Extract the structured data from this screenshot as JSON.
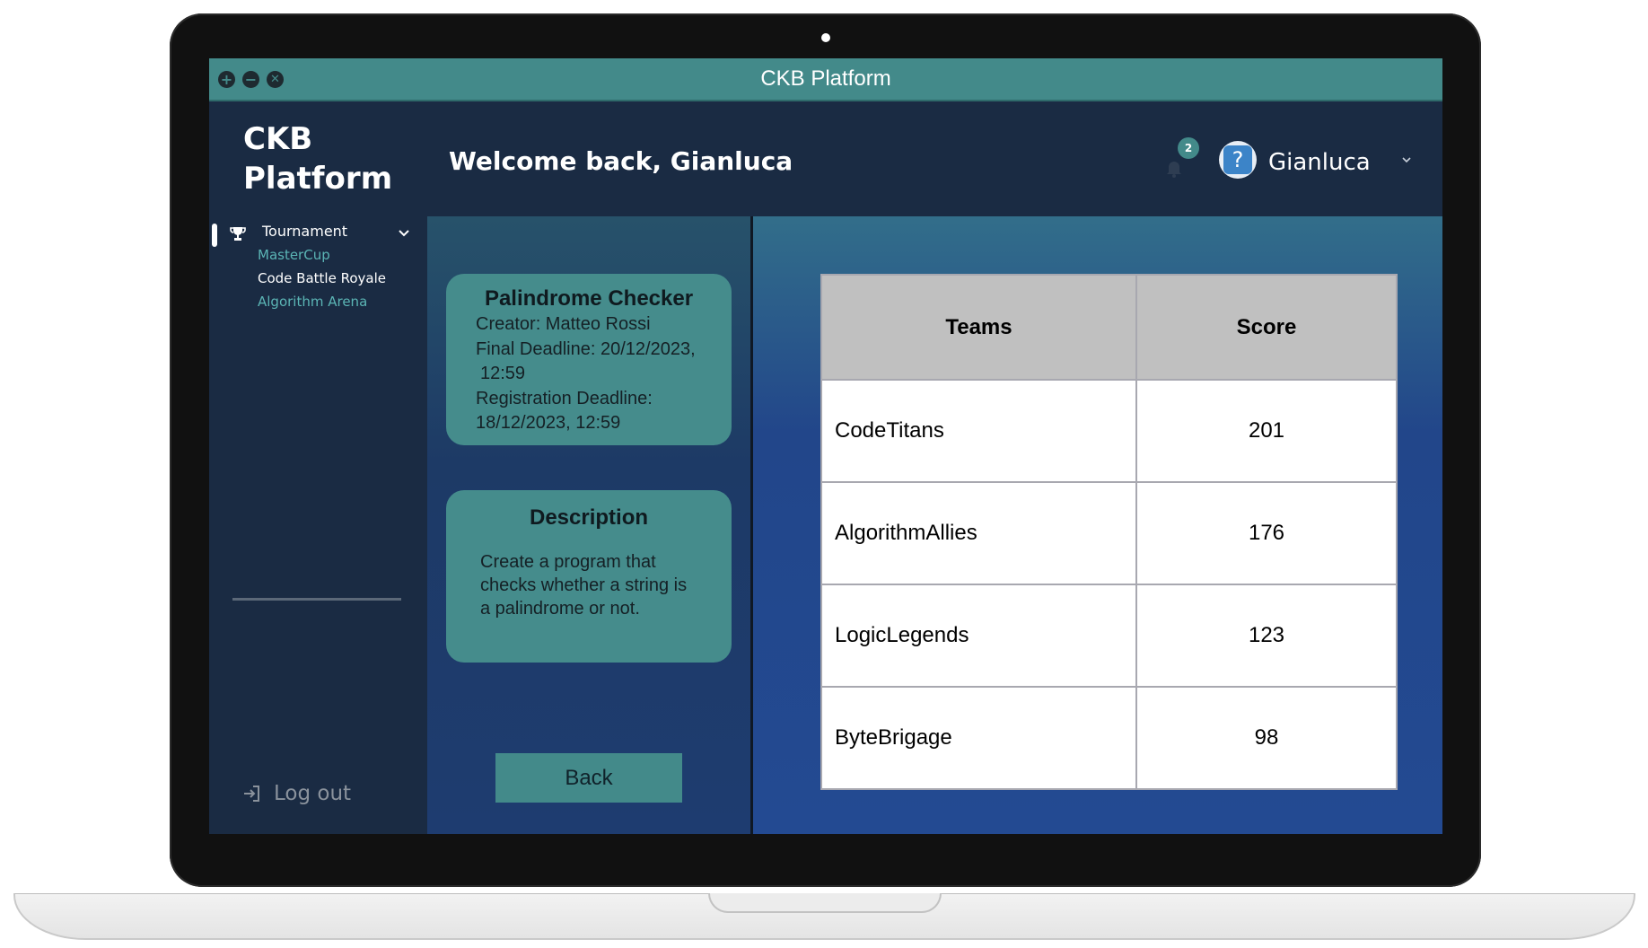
{
  "window": {
    "title": "CKB Platform"
  },
  "sidebar": {
    "brand": "CKB\nPlatform",
    "section_label": "Tournament",
    "items": [
      {
        "label": "MasterCup",
        "color": "#5bb5b5"
      },
      {
        "label": "Code Battle Royale",
        "color": "#ffffff"
      },
      {
        "label": "Algorithm Arena",
        "color": "#5bb5b5"
      }
    ],
    "logout_label": "Log out"
  },
  "header": {
    "welcome": "Welcome back, Gianluca",
    "notification_count": "2",
    "avatar_glyph": "?",
    "username": "Gianluca"
  },
  "challenge": {
    "title": "Palindrome Checker",
    "creator": "Creator: Matteo Rossi",
    "final_deadline_1": "Final Deadline: 20/12/2023,",
    "final_deadline_2": "12:59",
    "registration_deadline_1": "Registration Deadline:",
    "registration_deadline_2": "18/12/2023, 12:59"
  },
  "description": {
    "title": "Description",
    "line1": "Create a program that",
    "line2": "checks whether a string is",
    "line3": "a palindrome or not."
  },
  "back_label": "Back",
  "scoreboard": {
    "headers": [
      "Teams",
      "Score"
    ],
    "rows": [
      [
        "CodeTitans",
        "201"
      ],
      [
        "AlgorithmAllies",
        "176"
      ],
      [
        "LogicLegends",
        "123"
      ],
      [
        "ByteBrigage",
        "98"
      ]
    ]
  },
  "colors": {
    "accent": "#438a8a",
    "sidebar_bg": "#1a2b43",
    "submenu_inactive": "#5bb5b5"
  }
}
